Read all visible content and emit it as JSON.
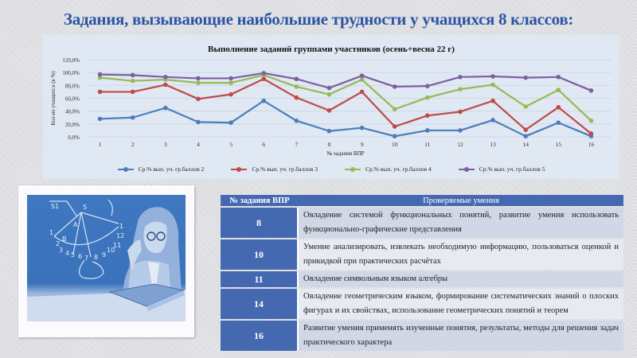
{
  "slide": {
    "title": "Задания, вызывающие наибольшие трудности у учащихся 8 классов:"
  },
  "chart_data": {
    "type": "line",
    "title": "Выполнение заданий группами участников (осень+весна 22 г)",
    "xlabel": "№ задания ВПР",
    "ylabel": "Кол-во учащихся (в %)",
    "ylim": [
      0,
      120
    ],
    "yticks": [
      "0,0%",
      "20,0%",
      "40,0%",
      "60,0%",
      "80,0%",
      "100,0%",
      "120,0%"
    ],
    "grid": true,
    "legend_position": "bottom",
    "categories": [
      "1",
      "2",
      "3",
      "4",
      "5",
      "6",
      "7",
      "8",
      "9",
      "10",
      "11",
      "12",
      "13",
      "14",
      "15",
      "16"
    ],
    "series": [
      {
        "name": "Ср.% вып. уч. гр.баллов 2",
        "color": "#4a7ebb",
        "values": [
          28,
          30,
          45,
          23,
          22,
          56,
          25,
          9,
          14,
          1,
          10,
          10,
          26,
          1,
          22,
          1
        ]
      },
      {
        "name": "Ср.% вып. уч. гр.баллов 3",
        "color": "#be4b48",
        "values": [
          70,
          70,
          81,
          59,
          66,
          90,
          61,
          41,
          70,
          16,
          33,
          39,
          56,
          11,
          46,
          5
        ]
      },
      {
        "name": "Ср.% вып. уч. гр.баллов 4",
        "color": "#98b954",
        "values": [
          92,
          87,
          89,
          84,
          84,
          96,
          78,
          66,
          89,
          43,
          61,
          74,
          81,
          47,
          73,
          25
        ]
      },
      {
        "name": "Ср.% вып. уч. гр.баллов 5",
        "color": "#7d5fa0",
        "values": [
          97,
          96,
          93,
          91,
          91,
          99,
          90,
          76,
          95,
          78,
          79,
          93,
          94,
          92,
          93,
          72
        ]
      }
    ]
  },
  "table": {
    "headers": [
      "№ задания ВПР",
      "Проверяемые умения"
    ],
    "rows": [
      {
        "num": "8",
        "text": "Овладение системой функциональных понятий, развитие умения использовать функционально-графические представления"
      },
      {
        "num": "10",
        "text": "Умение анализировать, извлекать необходимую информацию, пользоваться оценкой и прикидкой при практических расчётах"
      },
      {
        "num": "11",
        "text": "Овладение символьным языком алгебры"
      },
      {
        "num": "14",
        "text": "Овладение геометрическим языком, формирование систематических знаний о плоских фигурах и их свойствах, использование геометрических понятий и теорем"
      },
      {
        "num": "16",
        "text": "Развитие умения применять изученные понятия, результаты, методы для решения задач практического характера"
      }
    ]
  },
  "illustration": {
    "description": "teacher-with-glasses-and-book-at-blackboard",
    "board_numbers": [
      "S1",
      "S",
      "1",
      "2",
      "3",
      "4",
      "5",
      "6",
      "7",
      "8",
      "9",
      "10",
      "11",
      "12",
      "1",
      "A",
      "B"
    ]
  }
}
